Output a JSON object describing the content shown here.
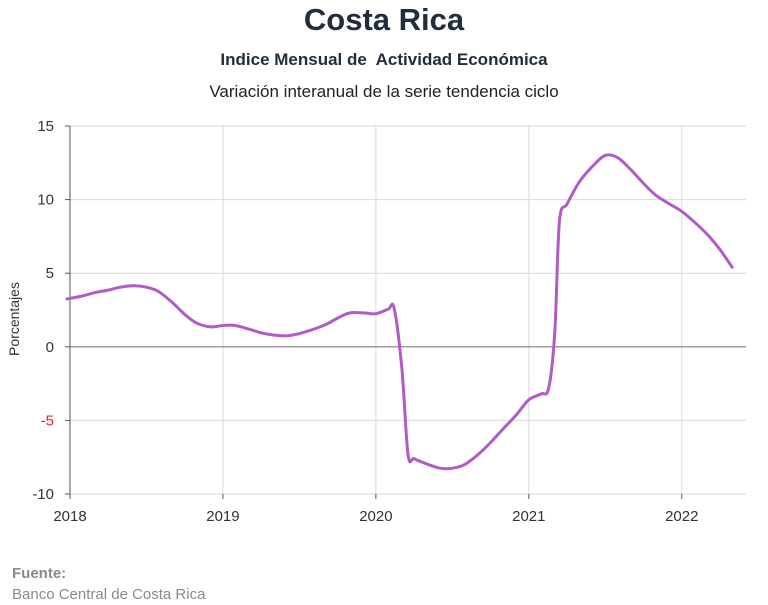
{
  "chart_data": {
    "type": "line",
    "title": "Costa Rica",
    "subtitle": "Indice Mensual de  Actividad Económica",
    "subtitle2": "Variación interanual de la serie tendencia ciclo",
    "ylabel": "Porcentajes",
    "xlabel": "",
    "ylim": [
      -10,
      15
    ],
    "xlim": [
      2018,
      2022.42
    ],
    "yticks": [
      "15",
      "10",
      "5",
      "0",
      "-5",
      "-10"
    ],
    "ytick_values": [
      15,
      10,
      5,
      0,
      -5,
      -10
    ],
    "xticks": [
      "2018",
      "2019",
      "2020",
      "2021",
      "2022"
    ],
    "xtick_values": [
      2018,
      2019,
      2020,
      2021,
      2022
    ],
    "grid": true,
    "colors": {
      "line": "#b05cc6",
      "grid": "#d9d9d9",
      "zero": "#7f7f7f",
      "negative_tick": "#e0282d"
    },
    "series": [
      {
        "values": [
          [
            2017.98,
            3.25
          ],
          [
            2018.08,
            3.45
          ],
          [
            2018.17,
            3.7
          ],
          [
            2018.25,
            3.85
          ],
          [
            2018.33,
            4.05
          ],
          [
            2018.42,
            4.15
          ],
          [
            2018.5,
            4.05
          ],
          [
            2018.58,
            3.75
          ],
          [
            2018.67,
            3.0
          ],
          [
            2018.75,
            2.2
          ],
          [
            2018.83,
            1.6
          ],
          [
            2018.92,
            1.35
          ],
          [
            2019.0,
            1.45
          ],
          [
            2019.08,
            1.45
          ],
          [
            2019.17,
            1.2
          ],
          [
            2019.25,
            0.95
          ],
          [
            2019.33,
            0.8
          ],
          [
            2019.42,
            0.75
          ],
          [
            2019.5,
            0.9
          ],
          [
            2019.58,
            1.15
          ],
          [
            2019.67,
            1.5
          ],
          [
            2019.75,
            1.95
          ],
          [
            2019.83,
            2.3
          ],
          [
            2019.92,
            2.3
          ],
          [
            2020.0,
            2.25
          ],
          [
            2020.08,
            2.55
          ],
          [
            2020.12,
            2.6
          ],
          [
            2020.17,
            -1.5
          ],
          [
            2020.21,
            -7.3
          ],
          [
            2020.25,
            -7.6
          ],
          [
            2020.33,
            -7.95
          ],
          [
            2020.42,
            -8.25
          ],
          [
            2020.5,
            -8.25
          ],
          [
            2020.58,
            -8.0
          ],
          [
            2020.67,
            -7.3
          ],
          [
            2020.75,
            -6.5
          ],
          [
            2020.83,
            -5.6
          ],
          [
            2020.92,
            -4.6
          ],
          [
            2021.0,
            -3.6
          ],
          [
            2021.08,
            -3.2
          ],
          [
            2021.13,
            -2.8
          ],
          [
            2021.17,
            1.0
          ],
          [
            2021.2,
            8.5
          ],
          [
            2021.25,
            9.7
          ],
          [
            2021.33,
            11.2
          ],
          [
            2021.42,
            12.3
          ],
          [
            2021.5,
            13.0
          ],
          [
            2021.58,
            12.85
          ],
          [
            2021.67,
            12.0
          ],
          [
            2021.75,
            11.1
          ],
          [
            2021.83,
            10.3
          ],
          [
            2021.92,
            9.7
          ],
          [
            2022.0,
            9.2
          ],
          [
            2022.08,
            8.5
          ],
          [
            2022.17,
            7.6
          ],
          [
            2022.25,
            6.6
          ],
          [
            2022.33,
            5.4
          ]
        ]
      }
    ]
  },
  "footer": {
    "source_label": "Fuente:",
    "source_text": "Banco Central de Costa Rica"
  }
}
